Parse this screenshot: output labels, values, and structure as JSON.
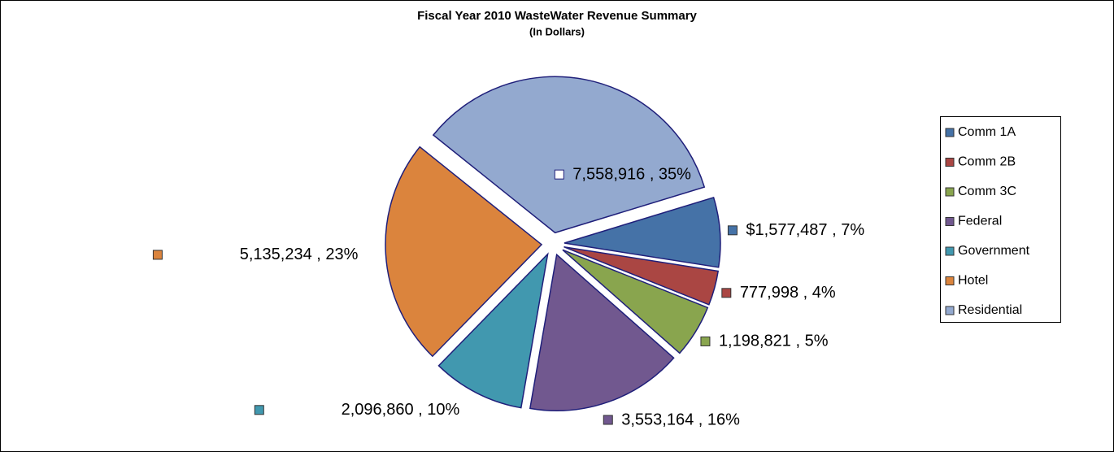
{
  "chart_data": {
    "type": "pie",
    "title": "Fiscal Year 2010 WasteWater  Revenue Summary",
    "subtitle": "(In Dollars)",
    "categories": [
      "Comm 1A",
      "Comm 2B",
      "Comm 3C",
      "Federal",
      "Government",
      "Hotel",
      "Residential"
    ],
    "values": [
      1577487,
      777998,
      1198821,
      3553164,
      2096860,
      5135234,
      7558916
    ],
    "value_labels": [
      "$1,577,487 , 7%",
      "777,998 , 4%",
      "1,198,821 , 5%",
      "3,553,164 , 16%",
      "2,096,860 , 10%",
      "5,135,234 , 23%",
      "7,558,916 , 35%"
    ],
    "colors": [
      "#4572a7",
      "#aa4643",
      "#89a54e",
      "#71588f",
      "#4198af",
      "#db843d",
      "#93a9cf"
    ],
    "legend": "right"
  }
}
